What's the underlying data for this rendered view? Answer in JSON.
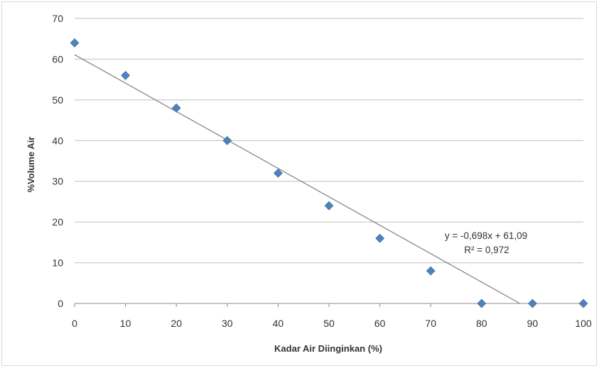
{
  "chart_data": {
    "type": "scatter",
    "title": "",
    "xlabel": "Kadar Air Diinginkan (%)",
    "ylabel": "%Volume Air",
    "xlim": [
      0,
      100
    ],
    "ylim": [
      0,
      70
    ],
    "xticks": [
      0,
      10,
      20,
      30,
      40,
      50,
      60,
      70,
      80,
      90,
      100
    ],
    "yticks": [
      0,
      10,
      20,
      30,
      40,
      50,
      60,
      70
    ],
    "grid": "horizontal",
    "legend": "none",
    "series": [
      {
        "x": [
          0,
          10,
          20,
          30,
          40,
          50,
          60,
          70,
          80,
          90,
          100
        ],
        "y": [
          64,
          56,
          48,
          40,
          32,
          24,
          16,
          8,
          0,
          0,
          0
        ],
        "color": "#4f81bd",
        "marker": "diamond"
      }
    ],
    "trendline": {
      "slope": -0.698,
      "intercept": 61.09,
      "color": "#7f7f7f",
      "equation": "y = -0,698x + 61,09",
      "r2_label": "R² = 0,972"
    }
  }
}
